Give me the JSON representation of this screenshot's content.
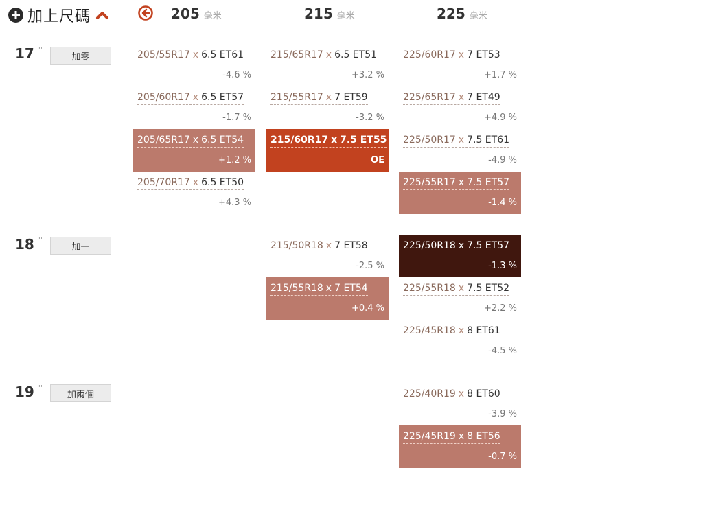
{
  "header": {
    "add_size_label": "加上尺碼",
    "icons": {
      "add": "plus-circle-icon",
      "collapse": "chevron-up-icon",
      "back": "arrow-left-circle-icon"
    },
    "widths": [
      {
        "num": "205",
        "unit": "毫米"
      },
      {
        "num": "215",
        "unit": "毫米"
      },
      {
        "num": "225",
        "unit": "毫米"
      }
    ]
  },
  "colors": {
    "accent": "#c2421f",
    "highlight": "#bb7a6c",
    "selected": "#40170e",
    "offset_button_bg": "#ececec"
  },
  "rows": [
    {
      "rim": "17",
      "mark": "''",
      "offset_label": "加零"
    },
    {
      "rim": "18",
      "mark": "''",
      "offset_label": "加一"
    },
    {
      "rim": "19",
      "mark": "''",
      "offset_label": "加兩個"
    }
  ],
  "cells": {
    "c17_205_1": {
      "tire": "205/55R17",
      "x": "x",
      "wheel": "6.5 ET61",
      "pct": "-4.6 %"
    },
    "c17_205_2": {
      "tire": "205/60R17",
      "x": "x",
      "wheel": "6.5 ET57",
      "pct": "-1.7 %"
    },
    "c17_205_3": {
      "tire": "205/65R17",
      "x": "x",
      "wheel": "6.5 ET54",
      "pct": "+1.2 %"
    },
    "c17_205_4": {
      "tire": "205/70R17",
      "x": "x",
      "wheel": "6.5 ET50",
      "pct": "+4.3 %"
    },
    "c17_215_1": {
      "tire": "215/65R17",
      "x": "x",
      "wheel": "6.5 ET51",
      "pct": "+3.2 %"
    },
    "c17_215_2": {
      "tire": "215/55R17",
      "x": "x",
      "wheel": "7 ET59",
      "pct": "-3.2 %"
    },
    "c17_215_3": {
      "tire": "215/60R17",
      "x": "x",
      "wheel": "7.5 ET55",
      "pct": "OE"
    },
    "c17_225_1": {
      "tire": "225/60R17",
      "x": "x",
      "wheel": "7 ET53",
      "pct": "+1.7 %"
    },
    "c17_225_2": {
      "tire": "225/65R17",
      "x": "x",
      "wheel": "7 ET49",
      "pct": "+4.9 %"
    },
    "c17_225_3": {
      "tire": "225/50R17",
      "x": "x",
      "wheel": "7.5 ET61",
      "pct": "-4.9 %"
    },
    "c17_225_4": {
      "tire": "225/55R17",
      "x": "x",
      "wheel": "7.5 ET57",
      "pct": "-1.4 %"
    },
    "c18_215_1": {
      "tire": "215/50R18",
      "x": "x",
      "wheel": "7 ET58",
      "pct": "-2.5 %"
    },
    "c18_215_2": {
      "tire": "215/55R18",
      "x": "x",
      "wheel": "7 ET54",
      "pct": "+0.4 %"
    },
    "c18_225_1": {
      "tire": "225/50R18",
      "x": "x",
      "wheel": "7.5 ET57",
      "pct": "-1.3 %"
    },
    "c18_225_2": {
      "tire": "225/55R18",
      "x": "x",
      "wheel": "7.5 ET52",
      "pct": "+2.2 %"
    },
    "c18_225_3": {
      "tire": "225/45R18",
      "x": "x",
      "wheel": "8 ET61",
      "pct": "-4.5 %"
    },
    "c19_225_1": {
      "tire": "225/40R19",
      "x": "x",
      "wheel": "8 ET60",
      "pct": "-3.9 %"
    },
    "c19_225_2": {
      "tire": "225/45R19",
      "x": "x",
      "wheel": "8 ET56",
      "pct": "-0.7 %"
    }
  }
}
